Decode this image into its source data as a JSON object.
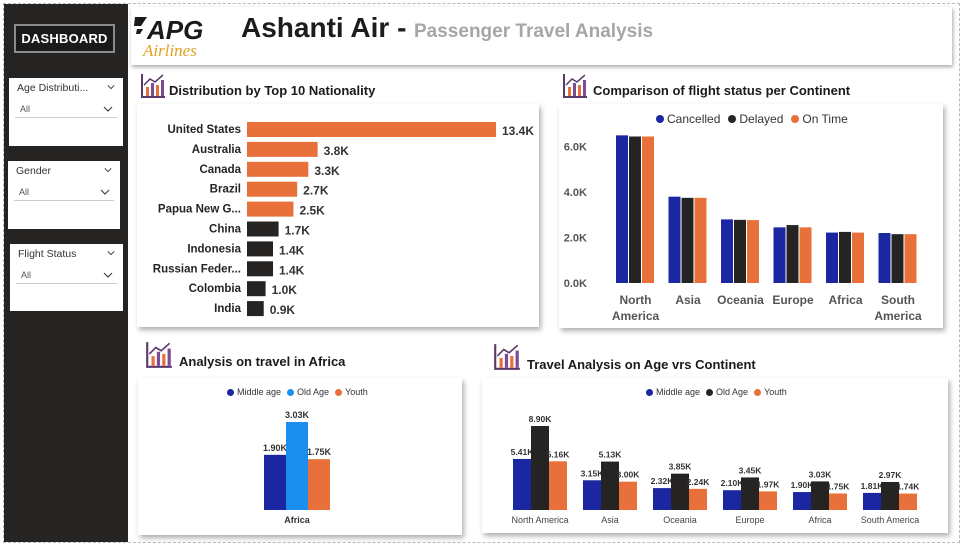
{
  "sidebar": {
    "dashboard_label": "DASHBOARD",
    "slicers": [
      {
        "title": "Age Distributi...",
        "value": "All"
      },
      {
        "title": "Gender",
        "value": "All"
      },
      {
        "title": "Flight Status",
        "value": "All"
      }
    ]
  },
  "header": {
    "logo_main": "APG",
    "logo_sub": "Airlines",
    "title": "Ashanti Air -",
    "subtitle": "Passenger Travel Analysis"
  },
  "colors": {
    "orange": "#E8703A",
    "dark": "#252423",
    "blue_dark": "#1A27A0",
    "blue_light": "#1A8FEF",
    "sidebar": "#252423"
  },
  "cards": {
    "nationality_title": "Distribution by Top 10 Nationality",
    "continent_status_title": "Comparison of flight status  per Continent",
    "africa_title": "Analysis on travel in Africa",
    "age_continent_title": "Travel Analysis on Age vrs Continent"
  },
  "chart_data": [
    {
      "type": "bar",
      "orientation": "horizontal",
      "title": "Distribution by Top 10 Nationality",
      "categories": [
        "United States",
        "Australia",
        "Canada",
        "Brazil",
        "Papua New G...",
        "China",
        "Indonesia",
        "Russian Feder...",
        "Colombia",
        "India"
      ],
      "values": [
        13400,
        3800,
        3300,
        2700,
        2500,
        1700,
        1400,
        1400,
        1000,
        900
      ],
      "labels": [
        "13.4K",
        "3.8K",
        "3.3K",
        "2.7K",
        "2.5K",
        "1.7K",
        "1.4K",
        "1.4K",
        "1.0K",
        "0.9K"
      ],
      "highlighted_top": 5
    },
    {
      "type": "bar",
      "title": "Comparison of flight status  per Continent",
      "categories": [
        "North America",
        "Asia",
        "Oceania",
        "Europe",
        "Africa",
        "South America"
      ],
      "category_lines": [
        [
          "North",
          "America"
        ],
        [
          "Asia"
        ],
        [
          "Oceania"
        ],
        [
          "Europe"
        ],
        [
          "Africa"
        ],
        [
          "South",
          "America"
        ]
      ],
      "series": [
        {
          "name": "Cancelled",
          "values": [
            6500,
            3800,
            2800,
            2450,
            2220,
            2200
          ]
        },
        {
          "name": "Delayed",
          "values": [
            6450,
            3750,
            2780,
            2550,
            2250,
            2150
          ]
        },
        {
          "name": "On Time",
          "values": [
            6450,
            3750,
            2770,
            2450,
            2220,
            2150
          ]
        }
      ],
      "yticks": [
        "0.0K",
        "2.0K",
        "4.0K",
        "6.0K"
      ],
      "ylim": [
        0,
        7000
      ],
      "legend_position": "top"
    },
    {
      "type": "bar",
      "title": "Analysis on travel in Africa",
      "categories": [
        "Africa"
      ],
      "series": [
        {
          "name": "Middle age",
          "values": [
            1900
          ],
          "label": "1.90K"
        },
        {
          "name": "Old Age",
          "values": [
            3030
          ],
          "label": "3.03K"
        },
        {
          "name": "Youth",
          "values": [
            1750
          ],
          "label": "1.75K"
        }
      ],
      "ylim": [
        0,
        3300
      ],
      "legend_position": "top"
    },
    {
      "type": "bar",
      "title": "Travel Analysis on Age vrs Continent",
      "categories": [
        "North America",
        "Asia",
        "Oceania",
        "Europe",
        "Africa",
        "South America"
      ],
      "series": [
        {
          "name": "Middle age",
          "values": [
            5410,
            3150,
            2320,
            2100,
            1900,
            1810
          ],
          "labels": [
            "5.41K",
            "3.15K",
            "2.32K",
            "2.10K",
            "1.90K",
            "1.81K"
          ]
        },
        {
          "name": "Old Age",
          "values": [
            8900,
            5130,
            3850,
            3450,
            3030,
            2970
          ],
          "labels": [
            "8.90K",
            "5.13K",
            "3.85K",
            "3.45K",
            "3.03K",
            "2.97K"
          ]
        },
        {
          "name": "Youth",
          "values": [
            5160,
            3000,
            2240,
            1970,
            1750,
            1740
          ],
          "labels": [
            "5.16K",
            "3.00K",
            "2.24K",
            "1.97K",
            "1.75K",
            "1.74K"
          ]
        }
      ],
      "ylim": [
        0,
        9800
      ],
      "legend_position": "top"
    }
  ]
}
